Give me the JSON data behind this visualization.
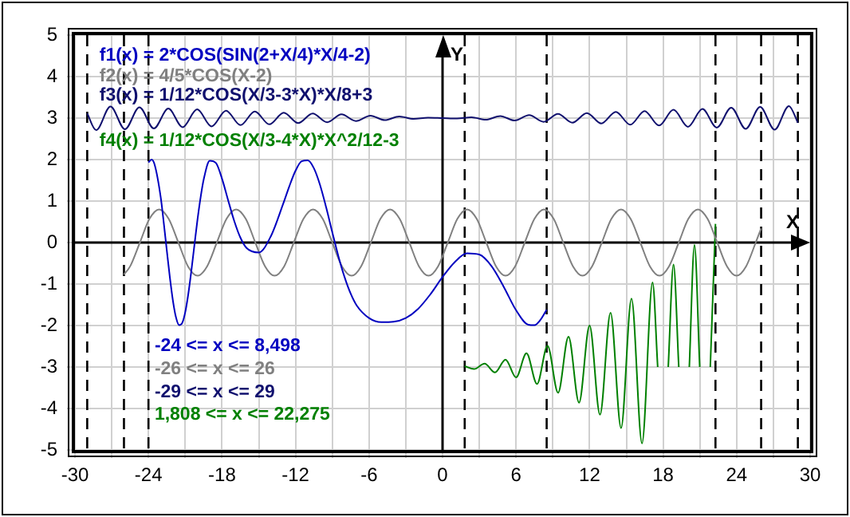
{
  "chart_data": {
    "type": "line",
    "xlabel": "X",
    "ylabel": "Y",
    "xlim": [
      -30,
      30
    ],
    "ylim": [
      -5,
      5
    ],
    "xticks": [
      -30,
      {
        "value": -27,
        "label": null
      },
      -24,
      {
        "value": -21,
        "label": null
      },
      -18,
      {
        "value": -15,
        "label": null
      },
      -12,
      {
        "value": -9,
        "label": null
      },
      -6,
      {
        "value": -3,
        "label": null
      },
      0,
      {
        "value": 3,
        "label": null
      },
      6,
      {
        "value": 9,
        "label": null
      },
      12,
      {
        "value": 15,
        "label": null
      },
      18,
      {
        "value": 21,
        "label": null
      },
      24,
      {
        "value": 27,
        "label": null
      },
      30
    ],
    "yticks": [
      -5,
      -4,
      -3,
      -2,
      -1,
      0,
      1,
      2,
      3,
      4,
      5
    ],
    "grid": true,
    "legend": "top left",
    "ref_lines": [
      {
        "axis": "x",
        "value": -29,
        "color": "#000000",
        "line_style": "dashed"
      },
      {
        "axis": "x",
        "value": -26,
        "color": "#000000",
        "line_style": "dashed"
      },
      {
        "axis": "x",
        "value": -24,
        "color": "#000000",
        "line_style": "dashed"
      },
      {
        "axis": "x",
        "value": 1.808,
        "color": "#000000",
        "line_style": "dashed"
      },
      {
        "axis": "x",
        "value": 8.498,
        "color": "#000000",
        "line_style": "dashed"
      },
      {
        "axis": "x",
        "value": 22.275,
        "color": "#000000",
        "line_style": "dashed"
      },
      {
        "axis": "x",
        "value": 26,
        "color": "#000000",
        "line_style": "dashed"
      },
      {
        "axis": "x",
        "value": 29,
        "color": "#000000",
        "line_style": "dashed"
      }
    ],
    "annotations": [
      "-24 <= x <= 8,498",
      "-26 <= x <= 26",
      "-29 <= x <= 29",
      "1,808 <= x <= 22,275"
    ],
    "series": [
      {
        "name": "f1(x) = 2*COS(SIN(2+X/4)*X/4-2)",
        "color": "#0000c0",
        "x": [
          -24,
          -23.75,
          -23.5,
          -23,
          -22.75,
          -22.5,
          -22.25,
          -22,
          -21.75,
          -21.5,
          -21.25,
          -21,
          -20.75,
          -20.5,
          -20.25,
          -20,
          -19.75,
          -19.5,
          -19,
          -18.5,
          -18,
          -17.5,
          -17,
          -16.5,
          -16,
          -15,
          -14,
          -13,
          -12.5,
          -12,
          -11.5,
          -11,
          -10.5,
          -10,
          -9.5,
          -9,
          -8.5,
          -8,
          -7.5,
          -7,
          -6,
          -5,
          -4,
          -3,
          -2,
          -1,
          0,
          1,
          2,
          3,
          4,
          5,
          6,
          7,
          7.5,
          8,
          8.498
        ],
        "values": [
          1.93,
          2.0,
          1.88,
          1.09,
          0.47,
          -0.2,
          -0.85,
          -1.41,
          -1.81,
          -1.99,
          -1.94,
          -1.68,
          -1.24,
          -0.68,
          -0.06,
          0.55,
          1.08,
          1.51,
          1.97,
          1.92,
          1.54,
          1.02,
          0.52,
          0.12,
          -0.13,
          -0.24,
          0.16,
          0.94,
          1.36,
          1.73,
          1.96,
          1.98,
          1.79,
          1.39,
          0.85,
          0.25,
          -0.33,
          -0.83,
          -1.23,
          -1.52,
          -1.82,
          -1.92,
          -1.91,
          -1.82,
          -1.6,
          -1.25,
          -0.83,
          -0.47,
          -0.26,
          -0.29,
          -0.57,
          -1.07,
          -1.63,
          -1.98,
          -1.99,
          -1.86,
          -1.62
        ]
      },
      {
        "name": "f2(x) = 4/5*COS(X-2)",
        "color": "#808080",
        "x": [
          -26,
          -25.49,
          -24.7,
          -23.92,
          -23.13,
          -22.35,
          -21.56,
          -20.78,
          -19.99,
          -19.21,
          -18.42,
          -17.63,
          -16.85,
          -16.06,
          -15.28,
          -14.49,
          -13.71,
          -12.92,
          -12.14,
          -11.35,
          -10.57,
          -9.78,
          -9.0,
          -8.21,
          -7.42,
          -6.64,
          -5.85,
          -5.07,
          -4.28,
          -3.5,
          -2.71,
          -1.93,
          -1.14,
          -0.36,
          0.43,
          1.21,
          2,
          2.79,
          3.57,
          4.36,
          5.14,
          5.93,
          6.71,
          7.5,
          8.28,
          9.07,
          9.85,
          10.64,
          11.42,
          12.21,
          13.0,
          13.78,
          14.57,
          15.35,
          16.14,
          16.92,
          17.71,
          18.49,
          19.28,
          20.06,
          20.85,
          21.63,
          22.42,
          23.21,
          23.99,
          24.78,
          25.56,
          26
        ],
        "values": [
          -0.77,
          -0.57,
          0,
          0.57,
          0.8,
          0.57,
          0,
          -0.57,
          -0.8,
          -0.57,
          0,
          0.57,
          0.8,
          0.57,
          0,
          -0.57,
          -0.8,
          -0.57,
          0,
          0.57,
          0.8,
          0.57,
          0,
          -0.57,
          -0.8,
          -0.57,
          0,
          0.57,
          0.8,
          0.57,
          0,
          -0.57,
          -0.8,
          -0.57,
          0,
          0.57,
          0.8,
          0.57,
          0,
          -0.57,
          -0.8,
          -0.57,
          0,
          0.57,
          0.8,
          0.57,
          0,
          -0.57,
          -0.8,
          -0.57,
          0,
          0.57,
          0.8,
          0.57,
          0,
          -0.57,
          -0.8,
          -0.57,
          0,
          0.57,
          0.8,
          0.57,
          0,
          -0.57,
          -0.8,
          -0.57,
          0,
          0.34
        ]
      },
      {
        "name": "f3(x) = 1/12*COS(X/3-3*X)*X/8+3",
        "color": "#10106e",
        "x": [
          -29,
          -28.27,
          -27.1,
          -25.92,
          -24.74,
          -23.56,
          -22.38,
          -21.21,
          -20.03,
          -18.85,
          -17.67,
          -16.49,
          -15.32,
          -14.14,
          -12.96,
          -11.78,
          -10.6,
          -9.42,
          -8.25,
          -7.07,
          -5.89,
          -4.71,
          -3.53,
          -2.36,
          -1.18,
          0,
          1.18,
          2.36,
          3.53,
          4.71,
          5.89,
          7.07,
          8.25,
          9.42,
          10.6,
          11.78,
          12.96,
          14.14,
          15.32,
          16.49,
          17.67,
          18.85,
          20.03,
          21.21,
          22.38,
          23.56,
          24.74,
          25.92,
          27.1,
          28.27,
          29
        ],
        "values": [
          3.11,
          2.71,
          3.28,
          2.73,
          3.26,
          2.75,
          3.23,
          2.78,
          3.21,
          2.8,
          3.18,
          2.83,
          3.16,
          2.85,
          3.13,
          2.88,
          3.11,
          2.9,
          3.09,
          2.93,
          3.06,
          2.95,
          3.04,
          2.98,
          3.01,
          3,
          2.99,
          3.02,
          2.96,
          3.05,
          2.94,
          3.07,
          2.91,
          3.1,
          2.89,
          3.12,
          2.87,
          3.15,
          2.84,
          3.17,
          2.82,
          3.2,
          2.79,
          3.22,
          2.77,
          3.25,
          2.74,
          3.27,
          2.72,
          3.29,
          2.89
        ]
      },
      {
        "name": "f4(x) = 1/12*COS(X/3-4*X)*X^2/12-3",
        "color": "#008000",
        "x": [
          1.808,
          2.57,
          3.43,
          4.28,
          5.14,
          6.0,
          6.85,
          7.71,
          8.57,
          9.43,
          10.28,
          11.14,
          12.0,
          12.85,
          13.71,
          14.57,
          15.42,
          16.28,
          17.14,
          17.56,
          17.99,
          18.42,
          18.85,
          19.28,
          19.71,
          20.14,
          20.56,
          20.99,
          21.42,
          21.85,
          22.275
        ],
        "values": [
          -2.98,
          -3.05,
          -2.92,
          -3.13,
          -2.82,
          -3.25,
          -2.67,
          -3.41,
          -2.49,
          -3.62,
          -2.27,
          -3.86,
          -2.0,
          -4.15,
          -1.69,
          -4.47,
          -1.35,
          -4.84,
          -0.96,
          -3,
          null,
          -3,
          -0.53,
          -3,
          null,
          -3,
          -0.06,
          -3,
          null,
          -3,
          0.45
        ]
      }
    ]
  }
}
